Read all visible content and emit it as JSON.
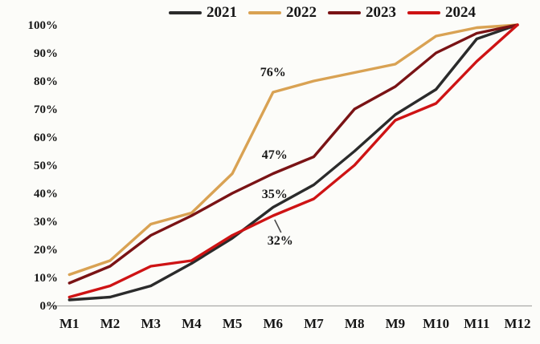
{
  "chart_data": {
    "type": "line",
    "title": "",
    "categories": [
      "M1",
      "M2",
      "M3",
      "M4",
      "M5",
      "M6",
      "M7",
      "M8",
      "M9",
      "M10",
      "M11",
      "M12"
    ],
    "series": [
      {
        "name": "2021",
        "color": "#2b2b2b",
        "values": [
          2,
          3,
          7,
          15,
          24,
          35,
          43,
          55,
          68,
          77,
          95,
          100
        ]
      },
      {
        "name": "2022",
        "color": "#d9a253",
        "values": [
          11,
          16,
          29,
          33,
          47,
          76,
          80,
          83,
          86,
          96,
          99,
          100
        ]
      },
      {
        "name": "2023",
        "color": "#7a1315",
        "values": [
          8,
          14,
          25,
          32,
          40,
          47,
          53,
          70,
          78,
          90,
          97,
          100
        ]
      },
      {
        "name": "2024",
        "color": "#ce1314",
        "values": [
          3,
          7,
          14,
          16,
          25,
          32,
          38,
          50,
          66,
          72,
          87,
          100
        ]
      }
    ],
    "y_axis": {
      "unit": "%",
      "min": 0,
      "max": 100,
      "ticks": [
        0,
        10,
        20,
        30,
        40,
        50,
        60,
        70,
        80,
        90,
        100
      ]
    },
    "x_axis": {
      "label": ""
    },
    "legend_position": "top",
    "grid": false,
    "annotations": [
      {
        "label": "76%",
        "series": "2022",
        "category": "M6",
        "value": 76
      },
      {
        "label": "47%",
        "series": "2023",
        "category": "M6",
        "value": 47
      },
      {
        "label": "35%",
        "series": "2021",
        "category": "M6",
        "value": 35
      },
      {
        "label": "32%",
        "series": "2024",
        "category": "M6",
        "value": 32
      }
    ]
  },
  "colors": {
    "background": "#fcfcf9",
    "axis_line": "#a9a9a9",
    "text": "#161616"
  }
}
